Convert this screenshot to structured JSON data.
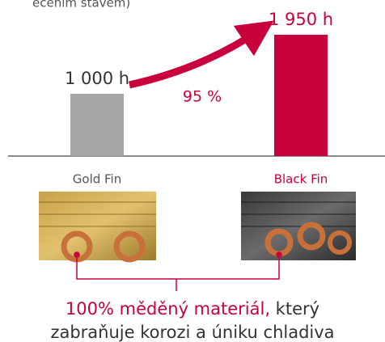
{
  "chart_data": {
    "type": "bar",
    "subtitle_fragment": "ečením stavem)",
    "categories": [
      "Gold Fin",
      "Black Fin"
    ],
    "values": [
      1000,
      1950
    ],
    "value_labels": [
      "1 000 h",
      "1 950 h"
    ],
    "colors": [
      "#a6a6a6",
      "#c8003c"
    ],
    "annotation": "95 %",
    "caption": {
      "highlight": "100% měděný materiál,",
      "rest": " který",
      "line2": "zabraňuje korozi a úniku chladiva"
    }
  }
}
